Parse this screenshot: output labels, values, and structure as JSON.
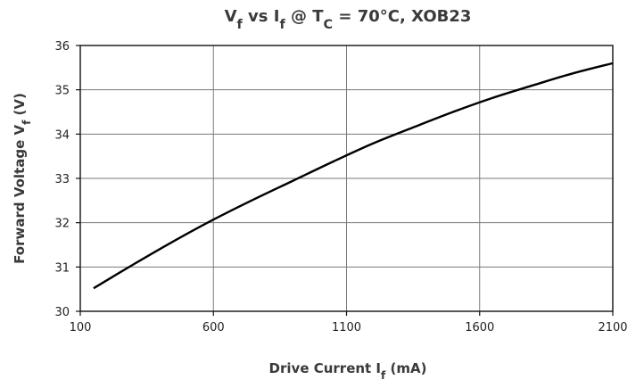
{
  "chart_data": {
    "type": "line",
    "title": {
      "parts": [
        {
          "text": "V",
          "sub": false
        },
        {
          "text": "f",
          "sub": true
        },
        {
          "text": " vs I",
          "sub": false
        },
        {
          "text": "f",
          "sub": true
        },
        {
          "text": " @ T",
          "sub": false
        },
        {
          "text": "C",
          "sub": true
        },
        {
          "text": " = 70°C, XOB23",
          "sub": false
        }
      ]
    },
    "xlabel": {
      "parts": [
        {
          "text": "Drive Current I",
          "sub": false
        },
        {
          "text": "f",
          "sub": true
        },
        {
          "text": " (mA)",
          "sub": false
        }
      ]
    },
    "ylabel": {
      "parts": [
        {
          "text": "Forward Voltage V",
          "sub": false
        },
        {
          "text": "f",
          "sub": true
        },
        {
          "text": " (V)",
          "sub": false
        }
      ]
    },
    "xlim": [
      100,
      2100
    ],
    "ylim": [
      30,
      36
    ],
    "xticks": [
      100,
      600,
      1100,
      1600,
      2100
    ],
    "yticks": [
      30,
      31,
      32,
      33,
      34,
      35,
      36
    ],
    "grid": true,
    "series": [
      {
        "x": [
          150,
          300,
          450,
          600,
          750,
          900,
          1050,
          1200,
          1350,
          1500,
          1650,
          1800,
          1950,
          2100
        ],
        "y": [
          30.52,
          31.06,
          31.58,
          32.07,
          32.52,
          32.95,
          33.38,
          33.79,
          34.15,
          34.5,
          34.82,
          35.1,
          35.37,
          35.6
        ]
      }
    ],
    "colors": {
      "line": "#000000",
      "grid": "#7a7a7a",
      "text": "#3a3a3a"
    }
  }
}
